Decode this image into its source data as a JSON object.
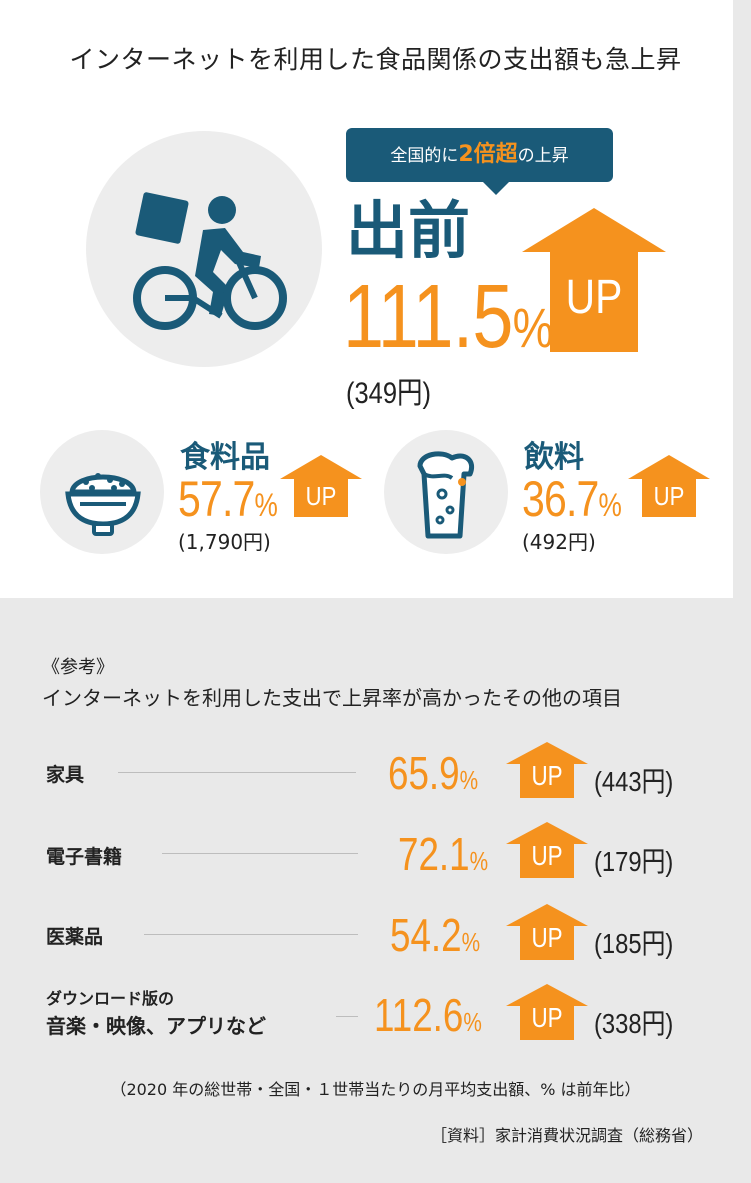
{
  "headline": "インターネットを利用した食品関係の支出額も急上昇",
  "callout": {
    "prefix": "全国的に",
    "highlight": "2倍超",
    "suffix": "の上昇"
  },
  "main": {
    "label": "出前",
    "pct": "111.5",
    "pct_unit": "%",
    "amount": "(349円)",
    "up": "UP",
    "icon": "delivery-bicycle-icon"
  },
  "items": [
    {
      "label": "食料品",
      "pct": "57.7",
      "pct_unit": "%",
      "amount": "(1,790円)",
      "up": "UP",
      "icon": "rice-bowl-icon"
    },
    {
      "label": "飲料",
      "pct": "36.7",
      "pct_unit": "%",
      "amount": "(492円)",
      "up": "UP",
      "icon": "beer-glass-icon"
    }
  ],
  "reference": {
    "title": "《参考》",
    "subtitle": "インターネットを利用した支出で上昇率が高かったその他の項目",
    "rows": [
      {
        "label": "家具",
        "pct": "65.9",
        "pct_unit": "%",
        "amount": "(443円)",
        "up": "UP"
      },
      {
        "label": "電子書籍",
        "pct": "72.1",
        "pct_unit": "%",
        "amount": "(179円)",
        "up": "UP"
      },
      {
        "label": "医薬品",
        "pct": "54.2",
        "pct_unit": "%",
        "amount": "(185円)",
        "up": "UP"
      },
      {
        "label_line1": "ダウンロード版の",
        "label_line2": "音楽・映像、アプリなど",
        "pct": "112.6",
        "pct_unit": "%",
        "amount": "(338円)",
        "up": "UP"
      }
    ]
  },
  "note": "（2020 年の総世帯・全国・１世帯当たりの月平均支出額、% は前年比）",
  "source": "［資料］家計消費状況調査（総務省）",
  "colors": {
    "teal": "#1a5a78",
    "orange": "#f5921e",
    "gray_bg": "#e9e9e9",
    "circle": "#ededed"
  }
}
